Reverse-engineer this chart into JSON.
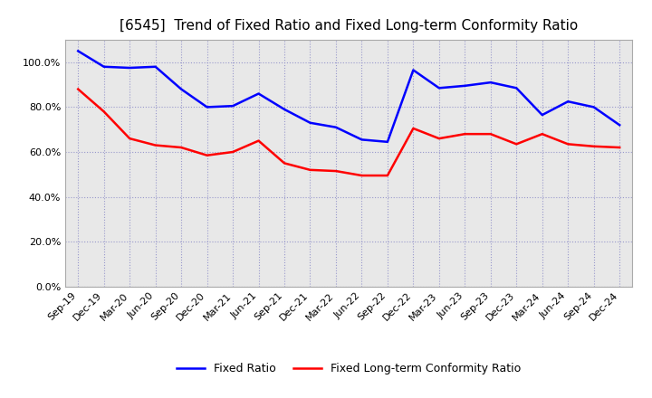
{
  "title": "[6545]  Trend of Fixed Ratio and Fixed Long-term Conformity Ratio",
  "x_labels": [
    "Sep-19",
    "Dec-19",
    "Mar-20",
    "Jun-20",
    "Sep-20",
    "Dec-20",
    "Mar-21",
    "Jun-21",
    "Sep-21",
    "Dec-21",
    "Mar-22",
    "Jun-22",
    "Sep-22",
    "Dec-22",
    "Mar-23",
    "Jun-23",
    "Sep-23",
    "Dec-23",
    "Mar-24",
    "Jun-24",
    "Sep-24",
    "Dec-24"
  ],
  "fixed_ratio": [
    105.0,
    98.0,
    97.5,
    98.0,
    88.0,
    80.0,
    80.5,
    86.0,
    79.0,
    73.0,
    71.0,
    65.5,
    64.5,
    96.5,
    88.5,
    89.5,
    91.0,
    88.5,
    76.5,
    82.5,
    80.0,
    72.0
  ],
  "fixed_lt_ratio": [
    88.0,
    78.0,
    66.0,
    63.0,
    62.0,
    58.5,
    60.0,
    65.0,
    55.0,
    52.0,
    51.5,
    49.5,
    49.5,
    70.5,
    66.0,
    68.0,
    68.0,
    63.5,
    68.0,
    63.5,
    62.5,
    62.0
  ],
  "ylim": [
    0,
    110
  ],
  "yticks": [
    0,
    20,
    40,
    60,
    80,
    100
  ],
  "line_color_blue": "#0000FF",
  "line_color_red": "#FF0000",
  "legend_labels": [
    "Fixed Ratio",
    "Fixed Long-term Conformity Ratio"
  ],
  "background_color": "#FFFFFF",
  "plot_bg_color": "#E8E8E8",
  "grid_color": "#9999CC",
  "title_fontsize": 11,
  "tick_fontsize": 8,
  "legend_fontsize": 9
}
